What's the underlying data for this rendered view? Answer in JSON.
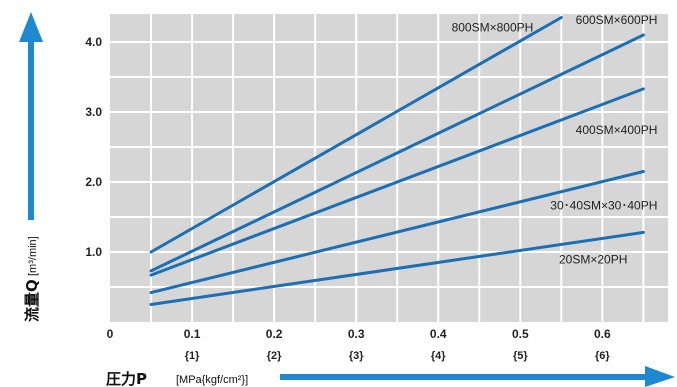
{
  "top_caption": "",
  "chart_data": {
    "type": "line",
    "title": "",
    "xlabel": "圧力P",
    "xlabel_unit": "[MPa{kgf/cm²}]",
    "ylabel": "流量Q",
    "ylabel_unit": "[m³/min]",
    "xlim": [
      0,
      0.68
    ],
    "ylim": [
      0,
      4.4
    ],
    "grid": true,
    "x_ticks": [
      {
        "value": 0,
        "label": "0",
        "sub": ""
      },
      {
        "value": 0.1,
        "label": "0.1",
        "sub": "{1}"
      },
      {
        "value": 0.2,
        "label": "0.2",
        "sub": "{2}"
      },
      {
        "value": 0.3,
        "label": "0.3",
        "sub": "{3}"
      },
      {
        "value": 0.4,
        "label": "0.4",
        "sub": "{4}"
      },
      {
        "value": 0.5,
        "label": "0.5",
        "sub": "{5}"
      },
      {
        "value": 0.6,
        "label": "0.6",
        "sub": "{6}"
      }
    ],
    "y_ticks": [
      {
        "value": 1.0,
        "label": "1.0"
      },
      {
        "value": 2.0,
        "label": "2.0"
      },
      {
        "value": 3.0,
        "label": "3.0"
      },
      {
        "value": 4.0,
        "label": "4.0"
      }
    ],
    "series": [
      {
        "name": "800SM×800PH",
        "x": [
          0.05,
          0.55
        ],
        "y": [
          1.0,
          4.35
        ]
      },
      {
        "name": "600SM×600PH",
        "x": [
          0.05,
          0.65
        ],
        "y": [
          0.73,
          4.1
        ]
      },
      {
        "name": "400SM×400PH",
        "x": [
          0.05,
          0.65
        ],
        "y": [
          0.67,
          3.33
        ]
      },
      {
        "name": "30･40SM×30･40PH",
        "x": [
          0.05,
          0.65
        ],
        "y": [
          0.42,
          2.15
        ]
      },
      {
        "name": "20SM×20PH",
        "x": [
          0.05,
          0.65
        ],
        "y": [
          0.25,
          1.28
        ]
      }
    ],
    "line_color": "#1d6fb3",
    "plot_bg": "#d6d6d6",
    "grid_color": "#ffffff",
    "arrow_color": "#1e88d0"
  }
}
